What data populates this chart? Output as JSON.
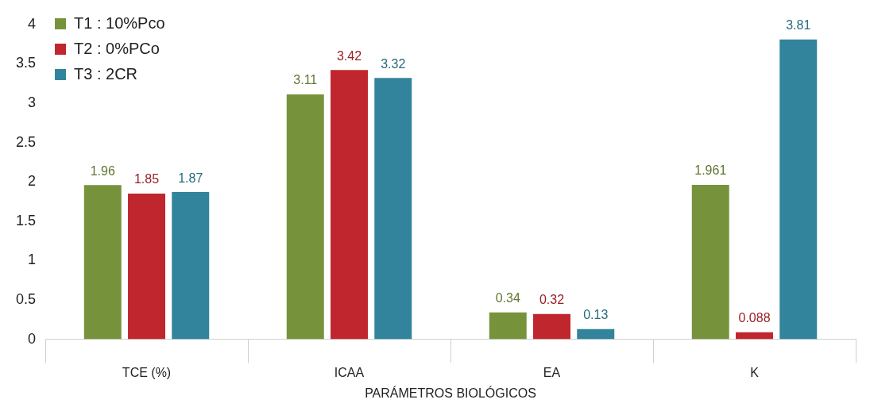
{
  "chart_data": {
    "type": "bar",
    "xlabel": "PARÁMETROS BIOLÓGICOS",
    "categories": [
      "TCE (%)",
      "ICAA",
      "EA",
      "K"
    ],
    "series": [
      {
        "name": "T1 : 10%Pco",
        "color": "#76933c",
        "values": [
          1.96,
          3.11,
          0.34,
          1.961
        ]
      },
      {
        "name": "T2 : 0%PCo",
        "color": "#c0262d",
        "values": [
          1.85,
          3.42,
          0.32,
          0.088
        ]
      },
      {
        "name": "T3 : 2CR",
        "color": "#31849b",
        "values": [
          1.87,
          3.32,
          0.13,
          3.81
        ]
      }
    ],
    "ylim": [
      0,
      4
    ],
    "yticks": [
      0,
      0.5,
      1,
      1.5,
      2,
      2.5,
      3,
      3.5,
      4
    ],
    "grid": false,
    "legend": "top left",
    "data_labels": true
  }
}
